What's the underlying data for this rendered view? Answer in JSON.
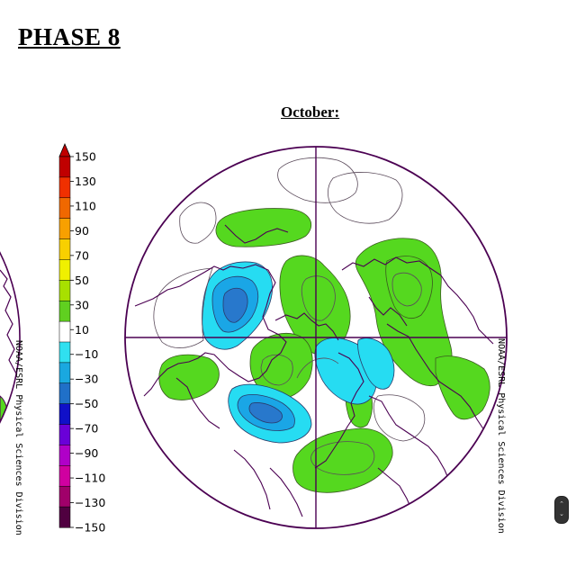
{
  "page": {
    "title": "PHASE 8"
  },
  "map": {
    "title": "October:",
    "projection": "north polar stereographic"
  },
  "colorbar": {
    "labels": [
      "150",
      "130",
      "110",
      "90",
      "70",
      "50",
      "30",
      "10",
      "−10",
      "−30",
      "−50",
      "−70",
      "−90",
      "−110",
      "−130",
      "−150"
    ],
    "colors": [
      "#c00000",
      "#f03000",
      "#f06800",
      "#f8a000",
      "#f8d000",
      "#f0f000",
      "#a8e000",
      "#60d020",
      "#ffffff",
      "#30e0f0",
      "#1aa8e0",
      "#2070c8",
      "#1010c8",
      "#6a00d8",
      "#b000c8",
      "#d000a0",
      "#a0006a",
      "#500040"
    ]
  },
  "credit": {
    "text": "NOAA/ESRL Physical Sciences Division"
  },
  "colors": {
    "positive": "#55d81f",
    "negative_light": "#26dcf2",
    "negative_mid": "#1aa6e6",
    "negative_dark": "#2878cc",
    "outline": "#4b0052"
  }
}
